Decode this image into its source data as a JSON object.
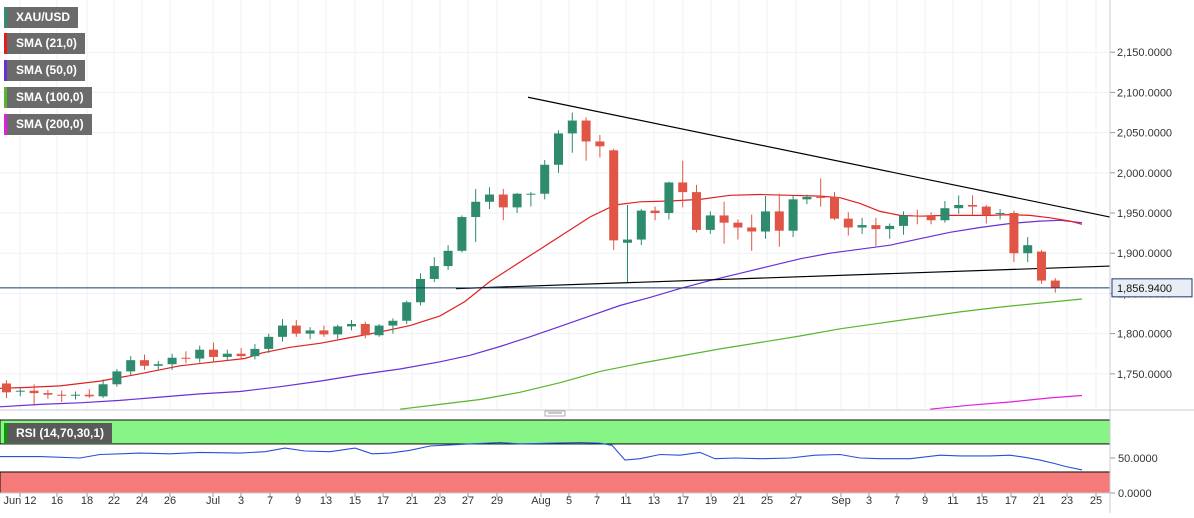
{
  "chart_data": {
    "type": "candlestick",
    "symbol": "XAU/USD",
    "last_price": "1,856.9400",
    "price_axis": {
      "ticks": [
        "2,150.0000",
        "2,100.0000",
        "2,050.0000",
        "2,000.0000",
        "1,950.0000",
        "1,900.0000",
        "1,850.0000",
        "1,800.0000",
        "1,750.0000"
      ],
      "range": [
        1705,
        2200
      ]
    },
    "rsi_axis": {
      "ticks": [
        "50.0000",
        "0.0000"
      ],
      "overbought": 70,
      "oversold": 30
    },
    "x_labels": [
      "Jun 12",
      "16",
      "18",
      "22",
      "24",
      "26",
      "Jul",
      "3",
      "7",
      "9",
      "13",
      "15",
      "17",
      "21",
      "23",
      "27",
      "29",
      "Aug",
      "5",
      "7",
      "11",
      "13",
      "17",
      "19",
      "21",
      "25",
      "27",
      "Sep",
      "3",
      "7",
      "9",
      "11",
      "15",
      "17",
      "21",
      "23",
      "25"
    ],
    "legend": [
      {
        "name": "SMA (21,0)",
        "color": "#e02020"
      },
      {
        "name": "SMA (50,0)",
        "color": "#6a2fd6"
      },
      {
        "name": "SMA (100,0)",
        "color": "#5ab52a"
      },
      {
        "name": "SMA (200,0)",
        "color": "#e020e0"
      }
    ],
    "rsi_name": "RSI (14,70,30,1)",
    "candles": [
      [
        1738,
        1742,
        1720,
        1727
      ],
      [
        1728,
        1732,
        1722,
        1729
      ],
      [
        1729,
        1737,
        1710,
        1726
      ],
      [
        1726,
        1730,
        1719,
        1724
      ],
      [
        1724,
        1729,
        1715,
        1723
      ],
      [
        1723,
        1728,
        1718,
        1724
      ],
      [
        1724,
        1731,
        1720,
        1722
      ],
      [
        1722,
        1743,
        1720,
        1737
      ],
      [
        1737,
        1756,
        1734,
        1753
      ],
      [
        1753,
        1772,
        1748,
        1767
      ],
      [
        1767,
        1774,
        1755,
        1760
      ],
      [
        1760,
        1766,
        1754,
        1762
      ],
      [
        1762,
        1775,
        1755,
        1770
      ],
      [
        1770,
        1778,
        1763,
        1769
      ],
      [
        1769,
        1785,
        1764,
        1780
      ],
      [
        1780,
        1789,
        1765,
        1771
      ],
      [
        1771,
        1780,
        1766,
        1775
      ],
      [
        1775,
        1782,
        1769,
        1772
      ],
      [
        1772,
        1787,
        1768,
        1781
      ],
      [
        1781,
        1800,
        1776,
        1796
      ],
      [
        1796,
        1818,
        1790,
        1810
      ],
      [
        1810,
        1817,
        1796,
        1800
      ],
      [
        1800,
        1808,
        1793,
        1804
      ],
      [
        1804,
        1810,
        1796,
        1799
      ],
      [
        1799,
        1811,
        1793,
        1809
      ],
      [
        1809,
        1817,
        1804,
        1812
      ],
      [
        1812,
        1815,
        1794,
        1798
      ],
      [
        1798,
        1812,
        1796,
        1810
      ],
      [
        1810,
        1819,
        1800,
        1816
      ],
      [
        1816,
        1841,
        1812,
        1839
      ],
      [
        1839,
        1875,
        1835,
        1868
      ],
      [
        1868,
        1895,
        1864,
        1884
      ],
      [
        1884,
        1910,
        1879,
        1903
      ],
      [
        1903,
        1947,
        1901,
        1945
      ],
      [
        1945,
        1980,
        1914,
        1964
      ],
      [
        1964,
        1982,
        1955,
        1973
      ],
      [
        1973,
        1980,
        1941,
        1957
      ],
      [
        1957,
        1975,
        1950,
        1974
      ],
      [
        1974,
        1976,
        1958,
        1974
      ],
      [
        1974,
        2016,
        1967,
        2010
      ],
      [
        2010,
        2053,
        2000,
        2049
      ],
      [
        2049,
        2075,
        2025,
        2065
      ],
      [
        2065,
        2069,
        2015,
        2039
      ],
      [
        2039,
        2047,
        2019,
        2033
      ],
      [
        2028,
        2030,
        1904,
        1916
      ],
      [
        1913,
        1960,
        1864,
        1917
      ],
      [
        1917,
        1955,
        1910,
        1953
      ],
      [
        1953,
        1958,
        1941,
        1950
      ],
      [
        1950,
        1989,
        1942,
        1988
      ],
      [
        1988,
        2015,
        1957,
        1976
      ],
      [
        1976,
        1985,
        1926,
        1929
      ],
      [
        1929,
        1952,
        1924,
        1947
      ],
      [
        1947,
        1964,
        1912,
        1938
      ],
      [
        1938,
        1942,
        1917,
        1932
      ],
      [
        1932,
        1948,
        1903,
        1927
      ],
      [
        1927,
        1971,
        1918,
        1952
      ],
      [
        1952,
        1974,
        1908,
        1928
      ],
      [
        1928,
        1972,
        1920,
        1967
      ],
      [
        1967,
        1973,
        1961,
        1970
      ],
      [
        1970,
        1993,
        1958,
        1969
      ],
      [
        1970,
        1976,
        1941,
        1943
      ],
      [
        1943,
        1951,
        1922,
        1932
      ],
      [
        1932,
        1944,
        1924,
        1935
      ],
      [
        1935,
        1944,
        1909,
        1930
      ],
      [
        1930,
        1937,
        1918,
        1934
      ],
      [
        1934,
        1952,
        1923,
        1947
      ],
      [
        1947,
        1954,
        1936,
        1946
      ],
      [
        1946,
        1951,
        1936,
        1941
      ],
      [
        1941,
        1965,
        1938,
        1956
      ],
      [
        1956,
        1972,
        1949,
        1960
      ],
      [
        1960,
        1972,
        1948,
        1958
      ],
      [
        1958,
        1960,
        1937,
        1947
      ],
      [
        1949,
        1955,
        1942,
        1950
      ],
      [
        1950,
        1953,
        1889,
        1900
      ],
      [
        1900,
        1920,
        1889,
        1910
      ],
      [
        1902,
        1904,
        1862,
        1866
      ],
      [
        1866,
        1869,
        1851,
        1857
      ]
    ],
    "sma21": [
      [
        0,
        1732
      ],
      [
        25,
        1733
      ],
      [
        60,
        1735
      ],
      [
        100,
        1741
      ],
      [
        140,
        1750
      ],
      [
        180,
        1760
      ],
      [
        215,
        1765
      ],
      [
        245,
        1769
      ],
      [
        262,
        1776
      ],
      [
        290,
        1783
      ],
      [
        320,
        1788
      ],
      [
        350,
        1795
      ],
      [
        380,
        1802
      ],
      [
        410,
        1810
      ],
      [
        440,
        1822
      ],
      [
        465,
        1840
      ],
      [
        490,
        1865
      ],
      [
        515,
        1885
      ],
      [
        540,
        1905
      ],
      [
        565,
        1925
      ],
      [
        590,
        1945
      ],
      [
        615,
        1960
      ],
      [
        640,
        1964
      ],
      [
        670,
        1965
      ],
      [
        700,
        1967
      ],
      [
        730,
        1972
      ],
      [
        760,
        1973
      ],
      [
        790,
        1972
      ],
      [
        820,
        1971
      ],
      [
        840,
        1969
      ],
      [
        860,
        1962
      ],
      [
        880,
        1952
      ],
      [
        900,
        1947
      ],
      [
        920,
        1946
      ],
      [
        945,
        1947
      ],
      [
        970,
        1947
      ],
      [
        990,
        1947
      ],
      [
        1010,
        1948
      ],
      [
        1030,
        1947
      ],
      [
        1050,
        1944
      ],
      [
        1070,
        1940
      ],
      [
        1082,
        1936
      ]
    ],
    "sma50": [
      [
        0,
        1709
      ],
      [
        40,
        1712
      ],
      [
        80,
        1714
      ],
      [
        120,
        1717
      ],
      [
        160,
        1721
      ],
      [
        200,
        1725
      ],
      [
        240,
        1728
      ],
      [
        280,
        1734
      ],
      [
        320,
        1741
      ],
      [
        360,
        1749
      ],
      [
        400,
        1756
      ],
      [
        440,
        1765
      ],
      [
        470,
        1773
      ],
      [
        500,
        1784
      ],
      [
        530,
        1796
      ],
      [
        560,
        1809
      ],
      [
        590,
        1822
      ],
      [
        620,
        1835
      ],
      [
        650,
        1845
      ],
      [
        680,
        1856
      ],
      [
        710,
        1866
      ],
      [
        740,
        1875
      ],
      [
        770,
        1884
      ],
      [
        800,
        1893
      ],
      [
        830,
        1900
      ],
      [
        860,
        1905
      ],
      [
        890,
        1910
      ],
      [
        920,
        1918
      ],
      [
        950,
        1926
      ],
      [
        980,
        1932
      ],
      [
        1010,
        1937
      ],
      [
        1040,
        1940
      ],
      [
        1060,
        1941
      ],
      [
        1082,
        1938
      ]
    ],
    "sma100": [
      [
        400,
        1706
      ],
      [
        440,
        1712
      ],
      [
        480,
        1718
      ],
      [
        520,
        1727
      ],
      [
        560,
        1739
      ],
      [
        600,
        1753
      ],
      [
        640,
        1763
      ],
      [
        680,
        1772
      ],
      [
        720,
        1781
      ],
      [
        760,
        1789
      ],
      [
        800,
        1797
      ],
      [
        840,
        1806
      ],
      [
        880,
        1813
      ],
      [
        920,
        1820
      ],
      [
        960,
        1827
      ],
      [
        1000,
        1833
      ],
      [
        1040,
        1838
      ],
      [
        1082,
        1843
      ]
    ],
    "sma200": [
      [
        930,
        1706
      ],
      [
        970,
        1711
      ],
      [
        1010,
        1715
      ],
      [
        1050,
        1720
      ],
      [
        1082,
        1723
      ]
    ],
    "trendlines": [
      {
        "from": [
          528,
          2094
        ],
        "to": [
          1110,
          1945
        ],
        "color": "#000000"
      },
      {
        "from": [
          456,
          1856
        ],
        "to": [
          1110,
          1884
        ],
        "color": "#000000"
      }
    ],
    "horizontal_line": 1856.94,
    "rsi": [
      [
        0,
        52
      ],
      [
        40,
        52
      ],
      [
        80,
        50
      ],
      [
        100,
        55
      ],
      [
        140,
        57
      ],
      [
        170,
        56
      ],
      [
        200,
        58
      ],
      [
        240,
        57
      ],
      [
        265,
        59
      ],
      [
        285,
        64
      ],
      [
        305,
        60
      ],
      [
        330,
        59
      ],
      [
        355,
        64
      ],
      [
        372,
        56
      ],
      [
        390,
        57
      ],
      [
        410,
        61
      ],
      [
        430,
        67
      ],
      [
        470,
        70
      ],
      [
        500,
        72
      ],
      [
        520,
        70
      ],
      [
        550,
        71
      ],
      [
        580,
        72
      ],
      [
        600,
        71
      ],
      [
        612,
        68
      ],
      [
        625,
        47
      ],
      [
        640,
        49
      ],
      [
        660,
        55
      ],
      [
        680,
        54
      ],
      [
        700,
        58
      ],
      [
        715,
        49
      ],
      [
        735,
        50
      ],
      [
        760,
        49
      ],
      [
        790,
        50
      ],
      [
        815,
        54
      ],
      [
        840,
        55
      ],
      [
        860,
        50
      ],
      [
        880,
        49
      ],
      [
        910,
        49
      ],
      [
        940,
        54
      ],
      [
        960,
        53
      ],
      [
        990,
        53
      ],
      [
        1010,
        54
      ],
      [
        1025,
        51
      ],
      [
        1040,
        47
      ],
      [
        1055,
        42
      ],
      [
        1065,
        38
      ],
      [
        1082,
        33
      ]
    ]
  }
}
